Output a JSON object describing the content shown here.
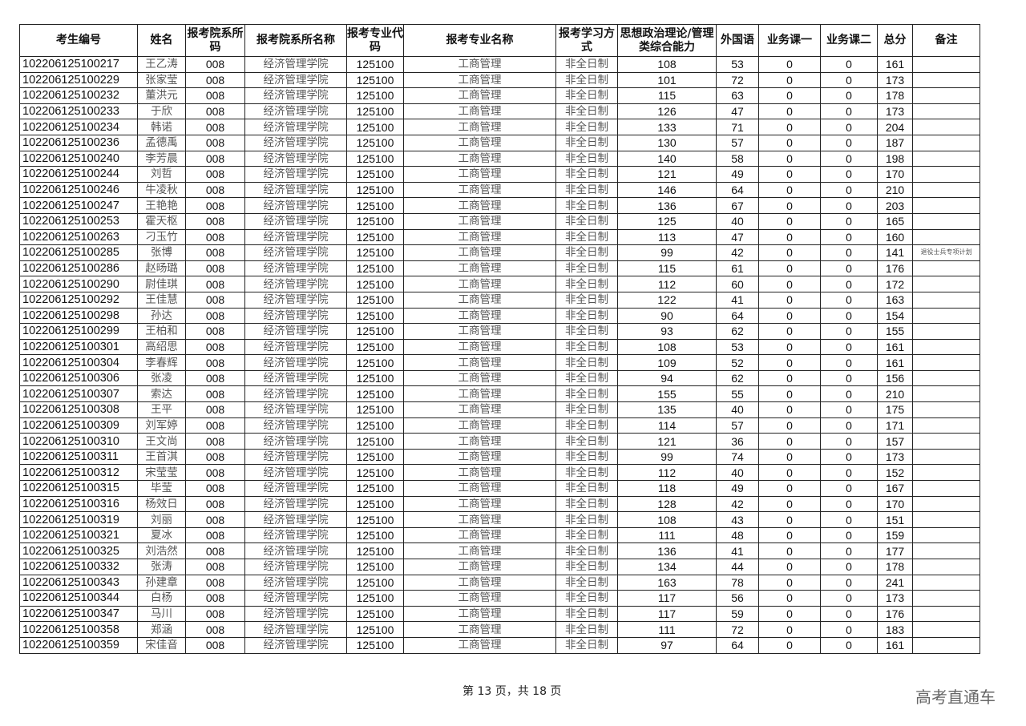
{
  "headers": [
    "考生编号",
    "姓名",
    "报考院系所码",
    "报考院系所名称",
    "报考专业代码",
    "报考专业名称",
    "报考学习方式",
    "思想政治理论/管理类综合能力",
    "外国语",
    "业务课一",
    "业务课二",
    "总分",
    "备注"
  ],
  "rows": [
    [
      "102206125100217",
      "王乙涛",
      "008",
      "经济管理学院",
      "125100",
      "工商管理",
      "非全日制",
      "108",
      "53",
      "0",
      "0",
      "161",
      ""
    ],
    [
      "102206125100229",
      "张家莹",
      "008",
      "经济管理学院",
      "125100",
      "工商管理",
      "非全日制",
      "101",
      "72",
      "0",
      "0",
      "173",
      ""
    ],
    [
      "102206125100232",
      "董洪元",
      "008",
      "经济管理学院",
      "125100",
      "工商管理",
      "非全日制",
      "115",
      "63",
      "0",
      "0",
      "178",
      ""
    ],
    [
      "102206125100233",
      "于欣",
      "008",
      "经济管理学院",
      "125100",
      "工商管理",
      "非全日制",
      "126",
      "47",
      "0",
      "0",
      "173",
      ""
    ],
    [
      "102206125100234",
      "韩诺",
      "008",
      "经济管理学院",
      "125100",
      "工商管理",
      "非全日制",
      "133",
      "71",
      "0",
      "0",
      "204",
      ""
    ],
    [
      "102206125100236",
      "孟德禹",
      "008",
      "经济管理学院",
      "125100",
      "工商管理",
      "非全日制",
      "130",
      "57",
      "0",
      "0",
      "187",
      ""
    ],
    [
      "102206125100240",
      "李芳晨",
      "008",
      "经济管理学院",
      "125100",
      "工商管理",
      "非全日制",
      "140",
      "58",
      "0",
      "0",
      "198",
      ""
    ],
    [
      "102206125100244",
      "刘哲",
      "008",
      "经济管理学院",
      "125100",
      "工商管理",
      "非全日制",
      "121",
      "49",
      "0",
      "0",
      "170",
      ""
    ],
    [
      "102206125100246",
      "牛凌秋",
      "008",
      "经济管理学院",
      "125100",
      "工商管理",
      "非全日制",
      "146",
      "64",
      "0",
      "0",
      "210",
      ""
    ],
    [
      "102206125100247",
      "王艳艳",
      "008",
      "经济管理学院",
      "125100",
      "工商管理",
      "非全日制",
      "136",
      "67",
      "0",
      "0",
      "203",
      ""
    ],
    [
      "102206125100253",
      "霍天枢",
      "008",
      "经济管理学院",
      "125100",
      "工商管理",
      "非全日制",
      "125",
      "40",
      "0",
      "0",
      "165",
      ""
    ],
    [
      "102206125100263",
      "刁玉竹",
      "008",
      "经济管理学院",
      "125100",
      "工商管理",
      "非全日制",
      "113",
      "47",
      "0",
      "0",
      "160",
      ""
    ],
    [
      "102206125100285",
      "张博",
      "008",
      "经济管理学院",
      "125100",
      "工商管理",
      "非全日制",
      "99",
      "42",
      "0",
      "0",
      "141",
      "退役士兵专项计划"
    ],
    [
      "102206125100286",
      "赵旸璐",
      "008",
      "经济管理学院",
      "125100",
      "工商管理",
      "非全日制",
      "115",
      "61",
      "0",
      "0",
      "176",
      ""
    ],
    [
      "102206125100290",
      "尉佳琪",
      "008",
      "经济管理学院",
      "125100",
      "工商管理",
      "非全日制",
      "112",
      "60",
      "0",
      "0",
      "172",
      ""
    ],
    [
      "102206125100292",
      "王佳慧",
      "008",
      "经济管理学院",
      "125100",
      "工商管理",
      "非全日制",
      "122",
      "41",
      "0",
      "0",
      "163",
      ""
    ],
    [
      "102206125100298",
      "孙达",
      "008",
      "经济管理学院",
      "125100",
      "工商管理",
      "非全日制",
      "90",
      "64",
      "0",
      "0",
      "154",
      ""
    ],
    [
      "102206125100299",
      "王柏和",
      "008",
      "经济管理学院",
      "125100",
      "工商管理",
      "非全日制",
      "93",
      "62",
      "0",
      "0",
      "155",
      ""
    ],
    [
      "102206125100301",
      "高绍思",
      "008",
      "经济管理学院",
      "125100",
      "工商管理",
      "非全日制",
      "108",
      "53",
      "0",
      "0",
      "161",
      ""
    ],
    [
      "102206125100304",
      "李春辉",
      "008",
      "经济管理学院",
      "125100",
      "工商管理",
      "非全日制",
      "109",
      "52",
      "0",
      "0",
      "161",
      ""
    ],
    [
      "102206125100306",
      "张凌",
      "008",
      "经济管理学院",
      "125100",
      "工商管理",
      "非全日制",
      "94",
      "62",
      "0",
      "0",
      "156",
      ""
    ],
    [
      "102206125100307",
      "索达",
      "008",
      "经济管理学院",
      "125100",
      "工商管理",
      "非全日制",
      "155",
      "55",
      "0",
      "0",
      "210",
      ""
    ],
    [
      "102206125100308",
      "王平",
      "008",
      "经济管理学院",
      "125100",
      "工商管理",
      "非全日制",
      "135",
      "40",
      "0",
      "0",
      "175",
      ""
    ],
    [
      "102206125100309",
      "刘军婷",
      "008",
      "经济管理学院",
      "125100",
      "工商管理",
      "非全日制",
      "114",
      "57",
      "0",
      "0",
      "171",
      ""
    ],
    [
      "102206125100310",
      "王文尚",
      "008",
      "经济管理学院",
      "125100",
      "工商管理",
      "非全日制",
      "121",
      "36",
      "0",
      "0",
      "157",
      ""
    ],
    [
      "102206125100311",
      "王首淇",
      "008",
      "经济管理学院",
      "125100",
      "工商管理",
      "非全日制",
      "99",
      "74",
      "0",
      "0",
      "173",
      ""
    ],
    [
      "102206125100312",
      "宋莹莹",
      "008",
      "经济管理学院",
      "125100",
      "工商管理",
      "非全日制",
      "112",
      "40",
      "0",
      "0",
      "152",
      ""
    ],
    [
      "102206125100315",
      "毕莹",
      "008",
      "经济管理学院",
      "125100",
      "工商管理",
      "非全日制",
      "118",
      "49",
      "0",
      "0",
      "167",
      ""
    ],
    [
      "102206125100316",
      "杨效日",
      "008",
      "经济管理学院",
      "125100",
      "工商管理",
      "非全日制",
      "128",
      "42",
      "0",
      "0",
      "170",
      ""
    ],
    [
      "102206125100319",
      "刘丽",
      "008",
      "经济管理学院",
      "125100",
      "工商管理",
      "非全日制",
      "108",
      "43",
      "0",
      "0",
      "151",
      ""
    ],
    [
      "102206125100321",
      "夏冰",
      "008",
      "经济管理学院",
      "125100",
      "工商管理",
      "非全日制",
      "111",
      "48",
      "0",
      "0",
      "159",
      ""
    ],
    [
      "102206125100325",
      "刘浩然",
      "008",
      "经济管理学院",
      "125100",
      "工商管理",
      "非全日制",
      "136",
      "41",
      "0",
      "0",
      "177",
      ""
    ],
    [
      "102206125100332",
      "张涛",
      "008",
      "经济管理学院",
      "125100",
      "工商管理",
      "非全日制",
      "134",
      "44",
      "0",
      "0",
      "178",
      ""
    ],
    [
      "102206125100343",
      "孙建章",
      "008",
      "经济管理学院",
      "125100",
      "工商管理",
      "非全日制",
      "163",
      "78",
      "0",
      "0",
      "241",
      ""
    ],
    [
      "102206125100344",
      "白杨",
      "008",
      "经济管理学院",
      "125100",
      "工商管理",
      "非全日制",
      "117",
      "56",
      "0",
      "0",
      "173",
      ""
    ],
    [
      "102206125100347",
      "马川",
      "008",
      "经济管理学院",
      "125100",
      "工商管理",
      "非全日制",
      "117",
      "59",
      "0",
      "0",
      "176",
      ""
    ],
    [
      "102206125100358",
      "郑涵",
      "008",
      "经济管理学院",
      "125100",
      "工商管理",
      "非全日制",
      "111",
      "72",
      "0",
      "0",
      "183",
      ""
    ],
    [
      "102206125100359",
      "宋佳音",
      "008",
      "经济管理学院",
      "125100",
      "工商管理",
      "非全日制",
      "97",
      "64",
      "0",
      "0",
      "161",
      ""
    ]
  ],
  "footer": {
    "page_info": "第 13 页，共 18 页"
  },
  "watermark": "高考直通车"
}
